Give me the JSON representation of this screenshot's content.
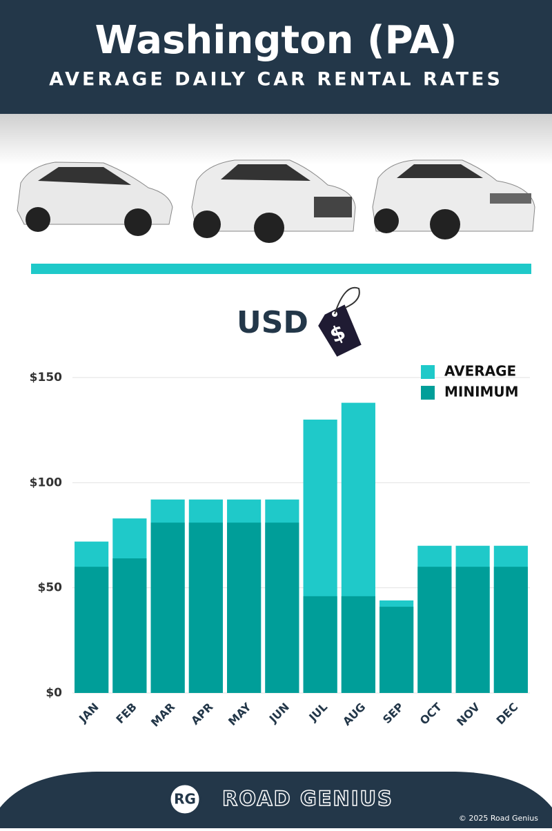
{
  "chart_data": {
    "type": "bar",
    "title": "Washington (PA)",
    "subtitle": "AVERAGE DAILY CAR RENTAL RATES",
    "unit_label": "USD",
    "price_tag": "$",
    "categories": [
      "JAN",
      "FEB",
      "MAR",
      "APR",
      "MAY",
      "JUN",
      "JUL",
      "AUG",
      "SEP",
      "OCT",
      "NOV",
      "DEC"
    ],
    "series": [
      {
        "name": "AVERAGE",
        "color": "#1fc9c9",
        "values": [
          72,
          83,
          92,
          92,
          92,
          92,
          130,
          138,
          44,
          70,
          70,
          70
        ]
      },
      {
        "name": "MINIMUM",
        "color": "#009e99",
        "values": [
          60,
          64,
          81,
          81,
          81,
          81,
          46,
          46,
          41,
          60,
          60,
          60
        ]
      }
    ],
    "ylim": [
      0,
      150
    ],
    "yticks": [
      {
        "value": 0,
        "label": "$0"
      },
      {
        "value": 50,
        "label": "$50"
      },
      {
        "value": 100,
        "label": "$100"
      },
      {
        "value": 150,
        "label": "$150"
      }
    ],
    "grid": true,
    "legend": "top-right"
  },
  "branding": {
    "logo": "RG",
    "name": "ROAD GENIUS",
    "copyright": "© 2025 Road Genius"
  }
}
